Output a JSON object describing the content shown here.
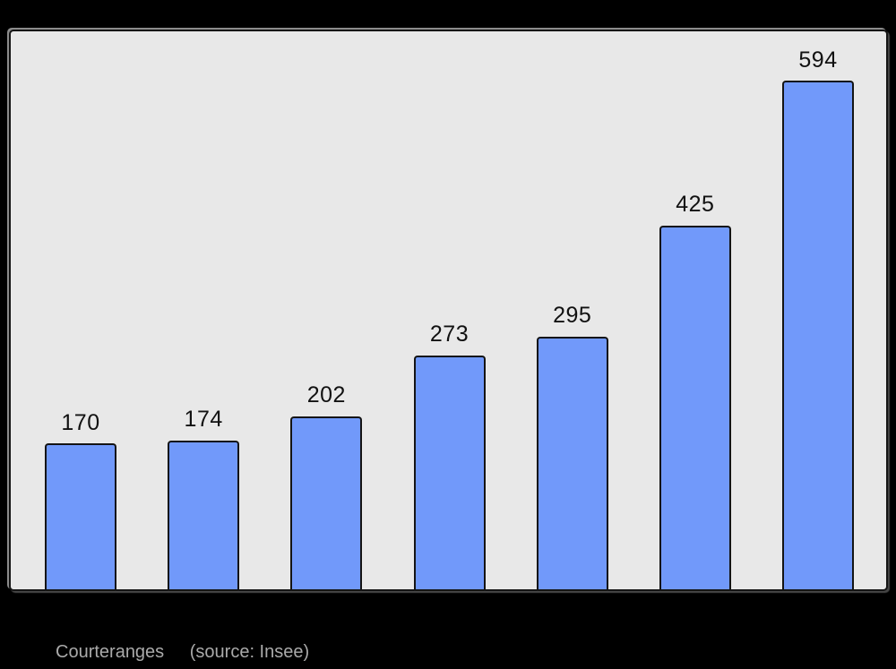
{
  "page": {
    "background_color": "#000000"
  },
  "chart_data": {
    "type": "bar",
    "values": [
      170,
      174,
      202,
      273,
      295,
      425,
      594
    ],
    "data_labels": [
      "170",
      "174",
      "202",
      "273",
      "295",
      "425",
      "594"
    ],
    "title": "",
    "xlabel": "",
    "ylabel": "",
    "ylim": [
      0,
      651
    ],
    "grid": false,
    "legend": "none",
    "axes_visible": false,
    "bar_fill": "#7199FA",
    "bar_stroke": "#141414",
    "plot_background": "#E8E8E8",
    "label_color": "#111111",
    "caption": {
      "text": "Courteranges",
      "source": "(source: Insee)",
      "color": "#AAAAAA"
    }
  }
}
